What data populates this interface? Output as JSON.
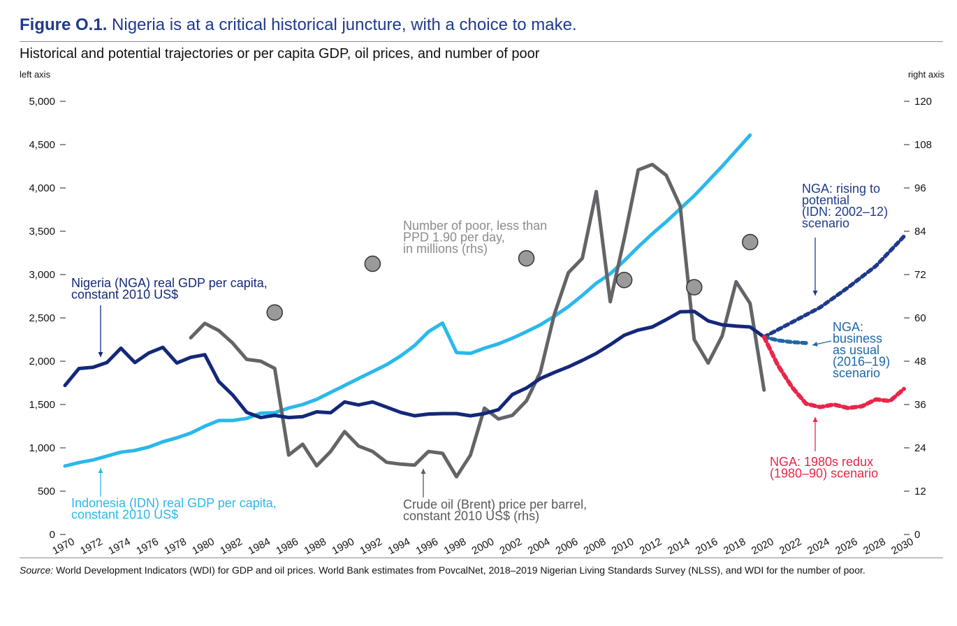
{
  "figure": {
    "label": "Figure O.1.",
    "title": "Nigeria is at a critical historical juncture, with a choice to make.",
    "subtitle": "Historical and potential trajectories or per capita GDP, oil prices, and number of poor",
    "left_axis_caption": "left axis",
    "right_axis_caption": "right axis",
    "source_label": "Source:",
    "source_text": " World Development Indicators (WDI) for GDP and oil prices. World Bank estimates from PovcalNet, 2018–2019 Nigerian Living Standards Survey (NLSS), and WDI for the number of poor."
  },
  "colors": {
    "nga": "#14287a",
    "idn": "#2bb8ea",
    "oil": "#636467",
    "poor": "#9a9a9a",
    "nga_potential": "#1f3a8a",
    "nga_business": "#1f66a8",
    "nga_redux": "#e8264a",
    "annotation_gray": "#8c8c8c"
  },
  "chart_data": {
    "type": "line",
    "x_range": [
      1970,
      2030
    ],
    "x_ticks": [
      "1970",
      "1972",
      "1974",
      "1976",
      "1978",
      "1980",
      "1982",
      "1984",
      "1986",
      "1988",
      "1990",
      "1992",
      "1994",
      "1996",
      "1998",
      "2000",
      "2002",
      "2004",
      "2006",
      "2008",
      "2010",
      "2012",
      "2014",
      "2016",
      "2018",
      "2020",
      "2022",
      "2024",
      "2026",
      "2028",
      "2030"
    ],
    "left_axis": {
      "range": [
        0,
        5000
      ],
      "ticks": [
        "0",
        "500",
        "1,000",
        "1,500",
        "2,000",
        "2,500",
        "3,000",
        "3,500",
        "4,000",
        "4,500",
        "5,000"
      ]
    },
    "right_axis": {
      "range": [
        0,
        120
      ],
      "ticks": [
        "0",
        "12",
        "24",
        "36",
        "48",
        "60",
        "72",
        "84",
        "96",
        "108",
        "120"
      ]
    },
    "series": [
      {
        "key": "nga",
        "name": "Nigeria (NGA) real GDP per capita, constant 2010 US$",
        "axis": "left",
        "style": "solid",
        "x": [
          1970,
          1971,
          1972,
          1973,
          1974,
          1975,
          1976,
          1977,
          1978,
          1979,
          1980,
          1981,
          1982,
          1983,
          1984,
          1985,
          1986,
          1987,
          1988,
          1989,
          1990,
          1991,
          1992,
          1993,
          1994,
          1995,
          1996,
          1997,
          1998,
          1999,
          2000,
          2001,
          2002,
          2003,
          2004,
          2005,
          2006,
          2007,
          2008,
          2009,
          2010,
          2011,
          2012,
          2013,
          2014,
          2015,
          2016,
          2017,
          2018,
          2019,
          2020
        ],
        "y": [
          1720,
          1915,
          1930,
          1985,
          2150,
          1985,
          2095,
          2160,
          1980,
          2045,
          2075,
          1765,
          1610,
          1410,
          1350,
          1375,
          1350,
          1360,
          1415,
          1405,
          1530,
          1495,
          1530,
          1470,
          1410,
          1370,
          1390,
          1395,
          1395,
          1370,
          1395,
          1440,
          1615,
          1690,
          1800,
          1870,
          1935,
          2010,
          2090,
          2190,
          2300,
          2360,
          2395,
          2480,
          2570,
          2575,
          2465,
          2420,
          2405,
          2395,
          2280
        ]
      },
      {
        "key": "idn",
        "name": "Indonesia (IDN) real GDP per capita, constant 2010 US$",
        "axis": "left",
        "style": "solid",
        "x": [
          1970,
          1971,
          1972,
          1973,
          1974,
          1975,
          1976,
          1977,
          1978,
          1979,
          1980,
          1981,
          1982,
          1983,
          1984,
          1985,
          1986,
          1987,
          1988,
          1989,
          1990,
          1991,
          1992,
          1993,
          1994,
          1995,
          1996,
          1997,
          1998,
          1999,
          2000,
          2001,
          2002,
          2003,
          2004,
          2005,
          2006,
          2007,
          2008,
          2009,
          2010,
          2011,
          2012,
          2013,
          2014,
          2015,
          2016,
          2017,
          2018,
          2019
        ],
        "y": [
          790,
          830,
          860,
          905,
          950,
          970,
          1010,
          1070,
          1115,
          1170,
          1250,
          1315,
          1315,
          1340,
          1400,
          1405,
          1460,
          1500,
          1560,
          1640,
          1720,
          1800,
          1880,
          1960,
          2060,
          2180,
          2340,
          2440,
          2100,
          2090,
          2150,
          2200,
          2265,
          2340,
          2420,
          2520,
          2630,
          2760,
          2900,
          3010,
          3160,
          3320,
          3470,
          3610,
          3760,
          3910,
          4080,
          4250,
          4430,
          4610
        ]
      },
      {
        "key": "oil",
        "name": "Crude oil (Brent) price per barrel, constant 2010 US$ (rhs)",
        "axis": "right",
        "style": "solid",
        "x": [
          1979,
          1980,
          1981,
          1982,
          1983,
          1984,
          1985,
          1986,
          1987,
          1988,
          1989,
          1990,
          1991,
          1992,
          1993,
          1994,
          1995,
          1996,
          1997,
          1998,
          1999,
          2000,
          2001,
          2002,
          2003,
          2004,
          2005,
          2006,
          2007,
          2008,
          2009,
          2010,
          2011,
          2012,
          2013,
          2014,
          2015,
          2016,
          2017,
          2018,
          2019,
          2020
        ],
        "y": [
          54.5,
          58.5,
          56.5,
          53,
          48.5,
          48,
          46,
          22,
          25,
          19,
          23,
          28.5,
          24.5,
          23,
          20,
          19.5,
          19.2,
          23,
          22.5,
          16,
          22,
          35,
          32,
          33,
          37,
          45,
          61,
          72.5,
          76.5,
          95,
          64.5,
          82,
          101,
          102.5,
          99.5,
          91,
          54,
          47.5,
          55,
          70,
          64,
          40
        ]
      },
      {
        "key": "poor",
        "name": "Number of poor, less than PPD 1.90 per day, in millions (rhs)",
        "axis": "right",
        "style": "dots",
        "x": [
          1985,
          1992,
          2003,
          2010,
          2015,
          2019
        ],
        "y": [
          61.5,
          75,
          76.5,
          70.5,
          68.5,
          81
        ]
      },
      {
        "key": "nga_potential",
        "name": "NGA: rising to potential (IDN: 2002–12) scenario",
        "axis": "left",
        "style": "dashed",
        "x": [
          2020,
          2022,
          2024,
          2026,
          2028,
          2030
        ],
        "y": [
          2280,
          2450,
          2620,
          2850,
          3100,
          3440
        ]
      },
      {
        "key": "nga_business",
        "name": "NGA: business as usual (2016–19) scenario",
        "axis": "left",
        "style": "dashed",
        "x": [
          2020,
          2021,
          2022,
          2023
        ],
        "y": [
          2280,
          2240,
          2220,
          2210
        ]
      },
      {
        "key": "nga_redux",
        "name": "NGA: 1980s redux (1980–90) scenario",
        "axis": "left",
        "style": "dashed",
        "x": [
          2020,
          2021,
          2022,
          2023,
          2024,
          2025,
          2026,
          2027,
          2028,
          2029,
          2030
        ],
        "y": [
          2280,
          1950,
          1700,
          1510,
          1470,
          1500,
          1460,
          1480,
          1560,
          1540,
          1680
        ]
      }
    ],
    "annotations": [
      {
        "key": "nga",
        "lines": [
          "Nigeria (NGA) real GDP per capita,",
          "constant 2010 US$"
        ]
      },
      {
        "key": "idn",
        "lines": [
          "Indonesia (IDN) real GDP per capita,",
          "constant 2010 US$"
        ]
      },
      {
        "key": "poor",
        "lines": [
          "Number of poor, less than",
          "PPD 1.90 per day,",
          "in millions (rhs)"
        ]
      },
      {
        "key": "oil",
        "lines": [
          "Crude oil (Brent) price per barrel,",
          "constant 2010 US$ (rhs)"
        ]
      },
      {
        "key": "nga_potential",
        "lines": [
          "NGA: rising to",
          "potential",
          "(IDN: 2002–12)",
          "scenario"
        ]
      },
      {
        "key": "nga_business",
        "lines": [
          "NGA:",
          "business",
          "as usual",
          "(2016–19)",
          "scenario"
        ]
      },
      {
        "key": "nga_redux",
        "lines": [
          "NGA: 1980s redux",
          "(1980–90) scenario"
        ]
      }
    ]
  }
}
